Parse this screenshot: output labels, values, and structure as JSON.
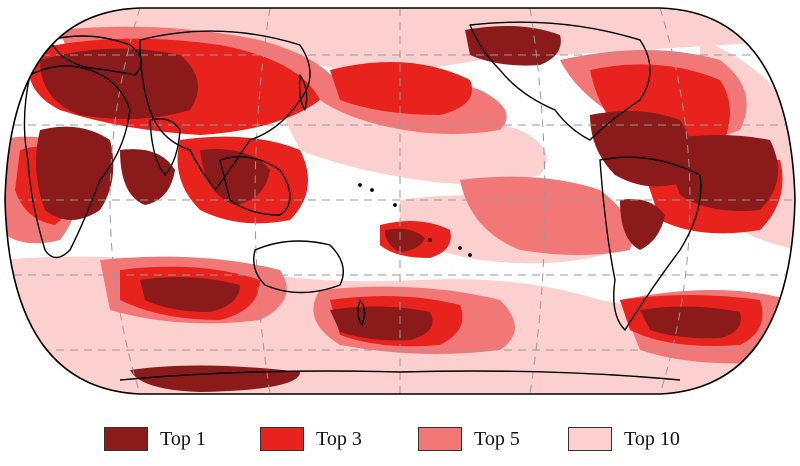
{
  "map": {
    "projection": "robinson-like",
    "center": "pacific",
    "background": "#ffffff",
    "coastline_color": "#000000",
    "graticule": "dashed gray"
  },
  "legend": {
    "items": [
      {
        "key": "top1",
        "label": "Top 1",
        "color": "#8b1a1a"
      },
      {
        "key": "top3",
        "label": "Top 3",
        "color": "#e8231e"
      },
      {
        "key": "top5",
        "label": "Top 5",
        "color": "#f27878"
      },
      {
        "key": "top10",
        "label": "Top 10",
        "color": "#fbd0cf"
      }
    ]
  }
}
